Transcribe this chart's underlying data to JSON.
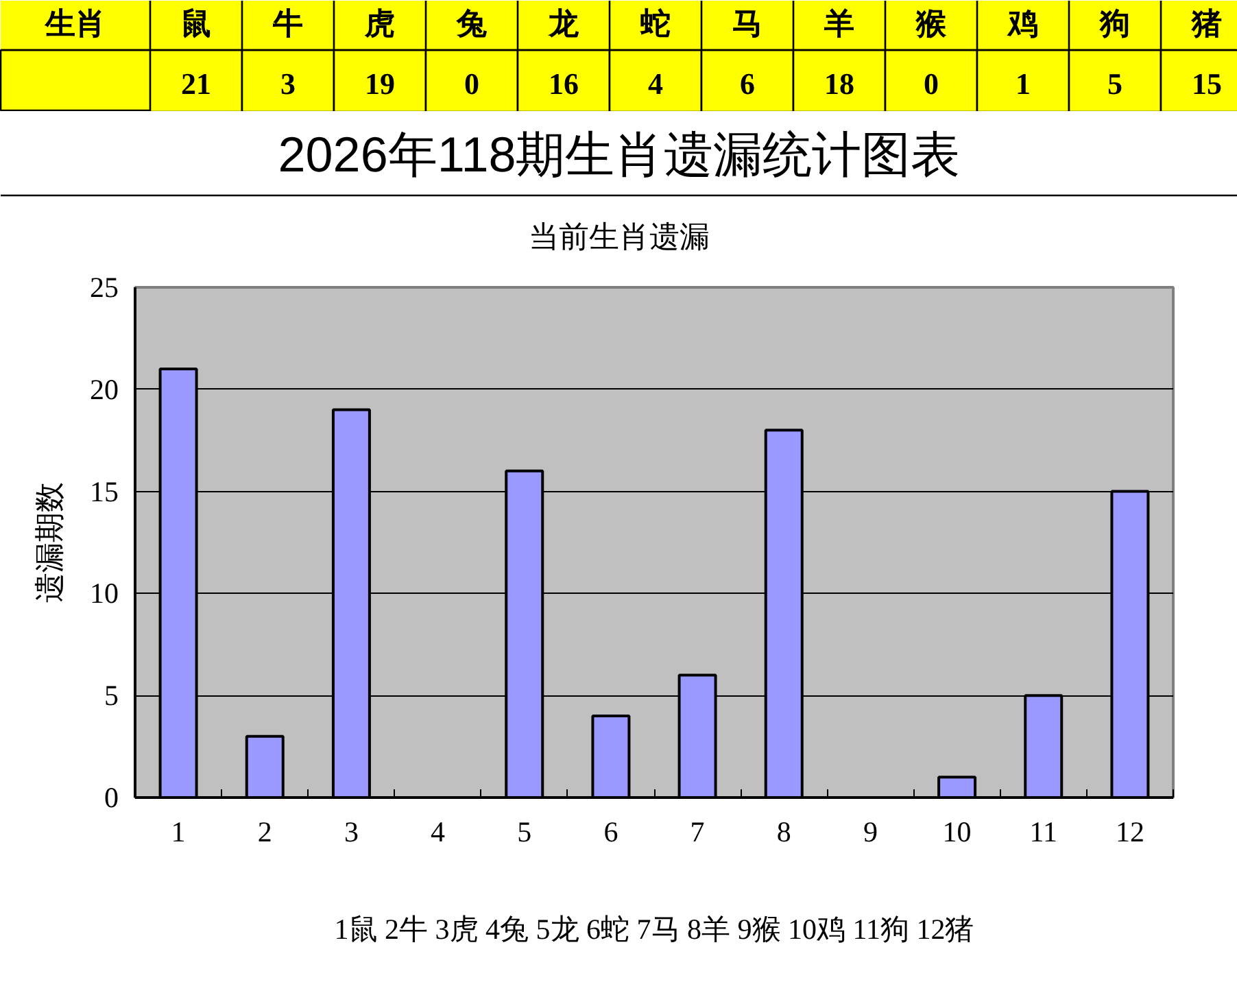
{
  "chart_data": [
    {
      "type": "other",
      "xlabel": "生肖",
      "categories": [
        "鼠",
        "牛",
        "虎",
        "兔",
        "龙",
        "蛇",
        "马",
        "羊",
        "猴",
        "鸡",
        "狗",
        "猪"
      ],
      "values": [
        21,
        3,
        19,
        0,
        16,
        4,
        6,
        18,
        0,
        1,
        5,
        15
      ],
      "color": "#ffff00",
      "data_labels": true
    },
    {
      "type": "bar",
      "title": "2026年118期生肖遗漏统计图表",
      "subtitle": "当前生肖遗漏",
      "ylabel": "遗漏期数",
      "x": [
        1,
        2,
        3,
        4,
        5,
        6,
        7,
        8,
        9,
        10,
        11,
        12
      ],
      "values": [
        21,
        3,
        19,
        0,
        16,
        4,
        6,
        18,
        0,
        1,
        5,
        15
      ],
      "color": "#9999ff",
      "xlim": [
        0.5,
        12.5
      ],
      "xticks": [
        {
          "value": 0.5,
          "label": null
        },
        1,
        {
          "value": 1.5,
          "label": null
        },
        2,
        {
          "value": 2.5,
          "label": null
        },
        3,
        {
          "value": 3.5,
          "label": null
        },
        4,
        {
          "value": 4.5,
          "label": null
        },
        5,
        {
          "value": 5.5,
          "label": null
        },
        6,
        {
          "value": 6.5,
          "label": null
        },
        7,
        {
          "value": 7.5,
          "label": null
        },
        8,
        {
          "value": 8.5,
          "label": null
        },
        9,
        {
          "value": 9.5,
          "label": null
        },
        10,
        {
          "value": 10.5,
          "label": null
        },
        11,
        {
          "value": 11.5,
          "label": null
        },
        12,
        {
          "value": 12.5,
          "label": null
        }
      ],
      "ylim": [
        0,
        25
      ],
      "yticks": [
        0,
        5,
        10,
        15,
        20,
        25
      ],
      "grid": "y",
      "annotations": [
        "1鼠 2牛 3虎 4兔 5龙 6蛇 7马 8羊 9猴 10鸡 11狗 12猪"
      ]
    }
  ]
}
